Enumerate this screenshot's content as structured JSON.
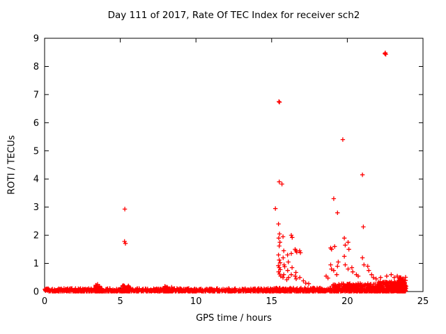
{
  "chart_data": {
    "type": "scatter",
    "title": "Day 111 of 2017, Rate Of TEC Index for receiver sch2",
    "xlabel": "GPS time / hours",
    "ylabel": "ROTI / TECUs",
    "xlim": [
      0,
      25
    ],
    "ylim": [
      0,
      9
    ],
    "xticks": [
      0,
      5,
      10,
      15,
      20,
      25
    ],
    "yticks": [
      0,
      1,
      2,
      3,
      4,
      5,
      6,
      7,
      8,
      9
    ],
    "grid": false,
    "legend": "none",
    "marker": "plus",
    "marker_color": "#ff0000",
    "axis_color": "#000000",
    "points": [
      [
        5.3,
        2.93
      ],
      [
        5.28,
        1.78
      ],
      [
        5.34,
        1.71
      ],
      [
        15.25,
        2.95
      ],
      [
        15.48,
        6.75
      ],
      [
        15.52,
        6.73
      ],
      [
        15.5,
        3.9
      ],
      [
        15.68,
        3.82
      ],
      [
        15.45,
        2.4
      ],
      [
        15.52,
        2.05
      ],
      [
        15.47,
        1.9
      ],
      [
        15.55,
        1.75
      ],
      [
        15.5,
        1.62
      ],
      [
        15.45,
        1.3
      ],
      [
        15.5,
        1.12
      ],
      [
        15.56,
        1.02
      ],
      [
        15.44,
        0.92
      ],
      [
        15.5,
        0.85
      ],
      [
        15.57,
        0.78
      ],
      [
        15.46,
        0.7
      ],
      [
        15.52,
        0.62
      ],
      [
        15.6,
        0.55
      ],
      [
        15.75,
        1.95
      ],
      [
        15.8,
        1.45
      ],
      [
        15.76,
        1.2
      ],
      [
        15.82,
        0.95
      ],
      [
        15.86,
        0.88
      ],
      [
        15.8,
        0.6
      ],
      [
        15.75,
        0.5
      ],
      [
        16.05,
        1.3
      ],
      [
        16.1,
        1.05
      ],
      [
        16.06,
        0.75
      ],
      [
        16.12,
        0.5
      ],
      [
        16.0,
        0.42
      ],
      [
        16.3,
        2.0
      ],
      [
        16.36,
        1.92
      ],
      [
        16.3,
        1.35
      ],
      [
        16.35,
        0.85
      ],
      [
        16.3,
        0.6
      ],
      [
        16.55,
        1.5
      ],
      [
        16.6,
        1.45
      ],
      [
        16.66,
        1.4
      ],
      [
        16.6,
        0.68
      ],
      [
        16.55,
        0.55
      ],
      [
        16.62,
        0.45
      ],
      [
        16.85,
        1.45
      ],
      [
        16.9,
        1.38
      ],
      [
        16.86,
        0.5
      ],
      [
        17.1,
        0.38
      ],
      [
        17.25,
        0.3
      ],
      [
        17.45,
        0.28
      ],
      [
        18.6,
        0.55
      ],
      [
        18.72,
        0.48
      ],
      [
        18.9,
        1.55
      ],
      [
        18.96,
        1.5
      ],
      [
        18.9,
        0.95
      ],
      [
        18.95,
        0.8
      ],
      [
        19.1,
        3.3
      ],
      [
        19.16,
        1.6
      ],
      [
        19.1,
        0.75
      ],
      [
        19.35,
        2.8
      ],
      [
        19.4,
        1.05
      ],
      [
        19.35,
        0.9
      ],
      [
        19.3,
        0.6
      ],
      [
        19.7,
        5.4
      ],
      [
        19.8,
        1.9
      ],
      [
        19.86,
        1.65
      ],
      [
        19.8,
        1.25
      ],
      [
        19.86,
        0.95
      ],
      [
        20.05,
        1.75
      ],
      [
        20.1,
        1.5
      ],
      [
        20.05,
        0.8
      ],
      [
        20.3,
        0.85
      ],
      [
        20.36,
        0.7
      ],
      [
        20.6,
        0.6
      ],
      [
        20.72,
        0.55
      ],
      [
        21.0,
        4.15
      ],
      [
        21.06,
        2.3
      ],
      [
        21.0,
        1.2
      ],
      [
        21.1,
        0.95
      ],
      [
        21.35,
        0.9
      ],
      [
        21.42,
        0.75
      ],
      [
        21.6,
        0.6
      ],
      [
        21.72,
        0.5
      ],
      [
        21.9,
        0.45
      ],
      [
        22.48,
        8.45
      ],
      [
        22.54,
        8.43
      ],
      [
        22.51,
        8.48
      ],
      [
        22.2,
        0.5
      ],
      [
        22.6,
        0.55
      ],
      [
        22.9,
        0.6
      ],
      [
        23.1,
        0.5
      ],
      [
        23.3,
        0.55
      ],
      [
        23.5,
        0.45
      ]
    ],
    "baseline_band": {
      "description": "dense band of low ROTI values hugging y=0 across the whole day",
      "segments": [
        {
          "x0": 0.0,
          "x1": 15.0,
          "count": 800,
          "ymax": 0.1
        },
        {
          "x0": 3.3,
          "x1": 3.8,
          "count": 50,
          "ymax": 0.28
        },
        {
          "x0": 5.1,
          "x1": 5.6,
          "count": 35,
          "ymax": 0.22
        },
        {
          "x0": 7.9,
          "x1": 8.4,
          "count": 35,
          "ymax": 0.18
        },
        {
          "x0": 15.0,
          "x1": 19.0,
          "count": 250,
          "ymax": 0.12
        },
        {
          "x0": 19.0,
          "x1": 22.0,
          "count": 350,
          "ymax": 0.28
        },
        {
          "x0": 22.0,
          "x1": 23.9,
          "count": 300,
          "ymax": 0.35
        },
        {
          "x0": 23.4,
          "x1": 23.85,
          "count": 90,
          "ymax": 0.5
        }
      ]
    }
  }
}
